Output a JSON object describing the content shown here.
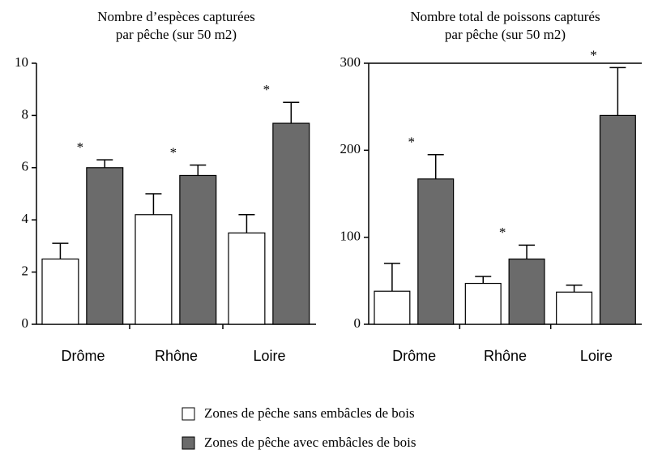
{
  "chart_data": [
    {
      "type": "bar",
      "title": "Nombre d’espèces capturées\npar pêche (sur 50 m2)",
      "categories": [
        "Drôme",
        "Rhône",
        "Loire"
      ],
      "series": [
        {
          "name": "Zones de pêche sans embâcles de bois",
          "color": "#ffffff",
          "values": [
            2.5,
            4.2,
            3.5
          ],
          "errors": [
            0.6,
            0.8,
            0.7
          ]
        },
        {
          "name": "Zones de pêche avec embâcles de bois",
          "color": "#6b6b6b",
          "values": [
            6.0,
            5.7,
            7.7
          ],
          "errors": [
            0.3,
            0.4,
            0.8
          ]
        }
      ],
      "annotations": [
        "*",
        "*",
        "*"
      ],
      "ylim": [
        0,
        10
      ],
      "yticks": [
        0,
        2,
        4,
        6,
        8,
        10
      ]
    },
    {
      "type": "bar",
      "title": "Nombre total de poissons capturés\npar pêche (sur 50 m2)",
      "categories": [
        "Drôme",
        "Rhône",
        "Loire"
      ],
      "series": [
        {
          "name": "Zones de pêche sans embâcles de bois",
          "color": "#ffffff",
          "values": [
            38,
            47,
            37
          ],
          "errors": [
            32,
            8,
            8
          ]
        },
        {
          "name": "Zones de pêche avec embâcles de bois",
          "color": "#6b6b6b",
          "values": [
            167,
            75,
            240
          ],
          "errors": [
            28,
            16,
            55
          ]
        }
      ],
      "annotations": [
        "*",
        "*",
        "*"
      ],
      "ylim": [
        0,
        300
      ],
      "yticks": [
        0,
        100,
        200,
        300
      ]
    }
  ]
}
